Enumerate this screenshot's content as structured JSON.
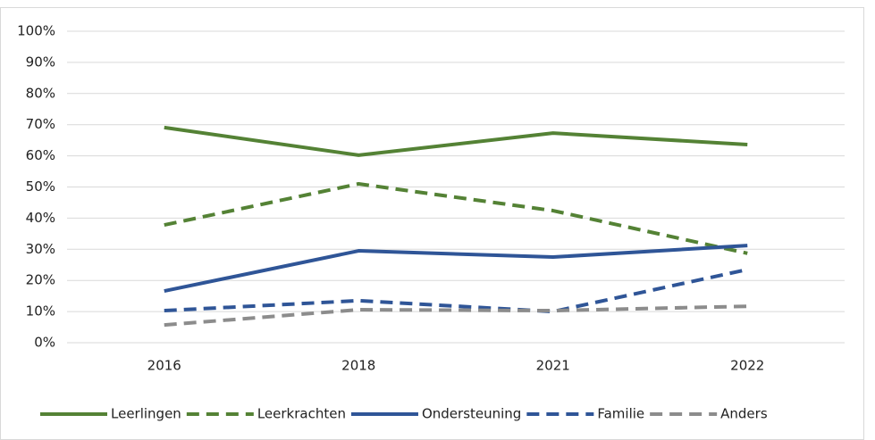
{
  "chart_data": {
    "type": "line",
    "categories": [
      "2016",
      "2018",
      "2021",
      "2022"
    ],
    "series": [
      {
        "name": "Leerlingen",
        "color": "#548235",
        "dash": "solid",
        "values": [
          69.1,
          60.2,
          67.3,
          63.6
        ]
      },
      {
        "name": "Leerkrachten",
        "color": "#548235",
        "dash": "dashed",
        "values": [
          37.8,
          51.0,
          42.4,
          28.7
        ]
      },
      {
        "name": "Ondersteuning",
        "color": "#2f5597",
        "dash": "solid",
        "values": [
          16.6,
          29.5,
          27.5,
          31.2
        ]
      },
      {
        "name": "Familie",
        "color": "#2f5597",
        "dash": "dashed",
        "values": [
          10.3,
          13.5,
          10.0,
          23.5
        ]
      },
      {
        "name": "Anders",
        "color": "#8c8c8c",
        "dash": "dashed",
        "values": [
          5.7,
          10.6,
          10.3,
          11.7
        ]
      }
    ],
    "ylim": [
      0,
      100
    ],
    "yticks": [
      {
        "value": 0,
        "label": "0%"
      },
      {
        "value": 10,
        "label": "10%"
      },
      {
        "value": 20,
        "label": "20%"
      },
      {
        "value": 30,
        "label": "30%"
      },
      {
        "value": 40,
        "label": "40%"
      },
      {
        "value": 50,
        "label": "50%"
      },
      {
        "value": 60,
        "label": "60%"
      },
      {
        "value": 70,
        "label": "70%"
      },
      {
        "value": 80,
        "label": "80%"
      },
      {
        "value": 90,
        "label": "90%"
      },
      {
        "value": 100,
        "label": "100%"
      }
    ],
    "grid": true,
    "legend": "bottom"
  }
}
